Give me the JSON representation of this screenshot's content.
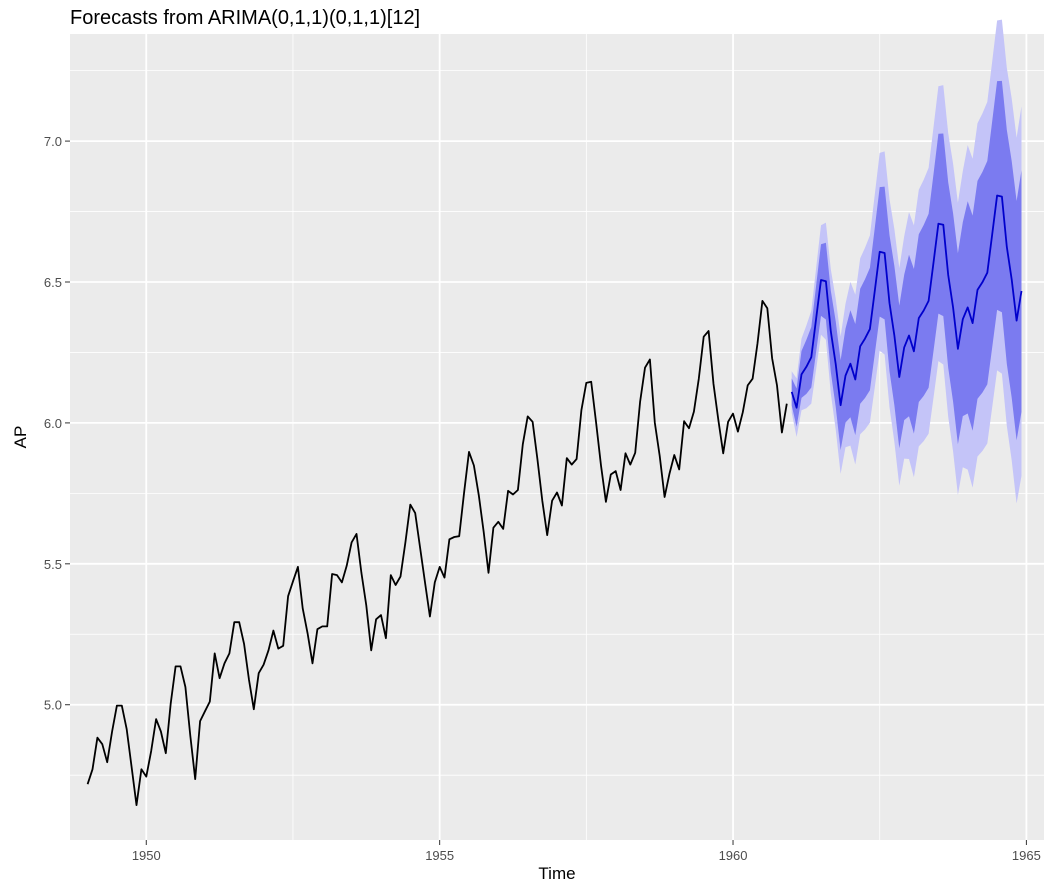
{
  "chart_data": {
    "type": "line",
    "title": "Forecasts from ARIMA(0,1,1)(0,1,1)[12]",
    "xlabel": "Time",
    "ylabel": "AP",
    "xlim": [
      1948.7,
      1965.3
    ],
    "ylim": [
      4.52,
      7.38
    ],
    "x_ticks": [
      1950,
      1955,
      1960,
      1965
    ],
    "x_tick_labels": [
      "1950",
      "1955",
      "1960",
      "1965"
    ],
    "y_ticks": [
      5.0,
      5.5,
      6.0,
      6.5,
      7.0
    ],
    "y_tick_labels": [
      "5.0",
      "5.5",
      "6.0",
      "6.5",
      "7.0"
    ],
    "grid": true,
    "legend": "none",
    "colors": {
      "panel": "#ebebeb",
      "grid": "#ffffff",
      "observed": "#000000",
      "forecast": "#0000cc",
      "band80": "#7b7bf0",
      "band95": "#c4c4f8"
    },
    "series": [
      {
        "role": "observed",
        "start": 1949.0,
        "frequency": 12,
        "values": [
          4.718,
          4.771,
          4.883,
          4.86,
          4.796,
          4.905,
          4.997,
          4.997,
          4.913,
          4.779,
          4.644,
          4.771,
          4.745,
          4.836,
          4.949,
          4.905,
          4.828,
          5.004,
          5.136,
          5.136,
          5.063,
          4.89,
          4.736,
          4.942,
          4.977,
          5.011,
          5.182,
          5.094,
          5.147,
          5.182,
          5.293,
          5.293,
          5.215,
          5.088,
          4.984,
          5.112,
          5.142,
          5.193,
          5.263,
          5.199,
          5.209,
          5.385,
          5.438,
          5.489,
          5.342,
          5.253,
          5.147,
          5.268,
          5.278,
          5.278,
          5.464,
          5.46,
          5.434,
          5.493,
          5.576,
          5.606,
          5.468,
          5.352,
          5.193,
          5.303,
          5.318,
          5.236,
          5.46,
          5.425,
          5.455,
          5.576,
          5.71,
          5.68,
          5.557,
          5.434,
          5.313,
          5.434,
          5.489,
          5.451,
          5.587,
          5.595,
          5.598,
          5.753,
          5.897,
          5.849,
          5.743,
          5.613,
          5.468,
          5.628,
          5.649,
          5.624,
          5.759,
          5.746,
          5.762,
          5.924,
          6.023,
          6.004,
          5.872,
          5.724,
          5.602,
          5.724,
          5.753,
          5.707,
          5.875,
          5.852,
          5.872,
          6.045,
          6.142,
          6.146,
          6.001,
          5.849,
          5.72,
          5.817,
          5.829,
          5.762,
          5.892,
          5.852,
          5.894,
          6.075,
          6.196,
          6.225,
          6.001,
          5.883,
          5.737,
          5.82,
          5.886,
          5.835,
          6.006,
          5.981,
          6.04,
          6.157,
          6.306,
          6.326,
          6.138,
          6.009,
          5.892,
          6.004,
          6.033,
          5.969,
          6.038,
          6.133,
          6.157,
          6.282,
          6.433,
          6.407,
          6.23,
          6.133,
          5.966,
          6.068
        ]
      },
      {
        "role": "forecast",
        "start": 1961.0,
        "frequency": 12,
        "values": [
          6.11,
          6.054,
          6.172,
          6.199,
          6.233,
          6.369,
          6.507,
          6.503,
          6.325,
          6.209,
          6.063,
          6.168,
          6.21,
          6.154,
          6.272,
          6.299,
          6.333,
          6.469,
          6.607,
          6.603,
          6.425,
          6.309,
          6.163,
          6.268,
          6.31,
          6.254,
          6.372,
          6.399,
          6.433,
          6.569,
          6.707,
          6.703,
          6.525,
          6.409,
          6.263,
          6.368,
          6.41,
          6.354,
          6.472,
          6.499,
          6.533,
          6.669,
          6.807,
          6.803,
          6.625,
          6.509,
          6.363,
          6.468
        ]
      }
    ]
  }
}
